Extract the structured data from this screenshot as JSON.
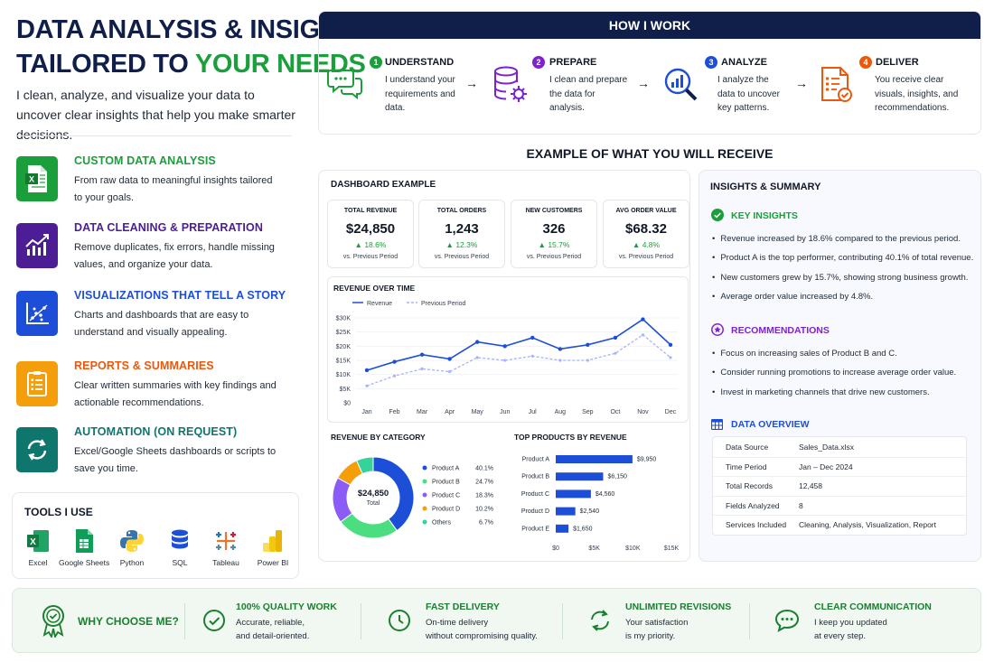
{
  "hero": {
    "line1": "DATA ANALYSIS & INSIGHTS",
    "line2_pre": "TAILORED TO ",
    "line2_accent": "YOUR NEEDS",
    "lead": "I clean, analyze, and visualize your data to uncover clear insights that help you make smarter decisions."
  },
  "services": [
    {
      "title": "CUSTOM DATA ANALYSIS",
      "desc": "From raw data to meaningful insights tailored to your goals.",
      "color": "#1a9f3b",
      "icon": "excel-file-icon"
    },
    {
      "title": "DATA CLEANING & PREPARATION",
      "desc": "Remove duplicates, fix errors, handle missing values, and organize your data.",
      "color": "#4c1d95",
      "icon": "chart-growth-icon"
    },
    {
      "title": "VISUALIZATIONS THAT TELL A STORY",
      "desc": "Charts and dashboards that are easy to understand and visually appealing.",
      "color": "#1d4ed8",
      "icon": "scatter-chart-icon"
    },
    {
      "title": "REPORTS & SUMMARIES",
      "desc": "Clear written summaries with key findings and actionable recommendations.",
      "color": "#ea580c",
      "icon": "report-icon"
    },
    {
      "title": "AUTOMATION (ON REQUEST)",
      "desc": "Excel/Google Sheets dashboards or scripts to save you time.",
      "color": "#0f766e",
      "icon": "refresh-icon"
    }
  ],
  "tools": {
    "title": "TOOLS I USE",
    "items": [
      "Excel",
      "Google Sheets",
      "Python",
      "SQL",
      "Tableau",
      "Power BI"
    ]
  },
  "how": {
    "title": "HOW I WORK",
    "steps": [
      {
        "num": "1",
        "title": "UNDERSTAND",
        "desc": "I understand your requirements and data.",
        "color": "#1a9f3b"
      },
      {
        "num": "2",
        "title": "PREPARE",
        "desc": "I clean and prepare the data for analysis.",
        "color": "#7e22ce"
      },
      {
        "num": "3",
        "title": "ANALYZE",
        "desc": "I analyze the data to uncover key patterns.",
        "color": "#1d4ed8"
      },
      {
        "num": "4",
        "title": "DELIVER",
        "desc": "You receive clear visuals, insights, and recommendations.",
        "color": "#ea580c"
      }
    ]
  },
  "example_title": "EXAMPLE OF WHAT YOU WILL RECEIVE",
  "dashboard": {
    "title": "DASHBOARD EXAMPLE",
    "kpis": [
      {
        "label": "TOTAL REVENUE",
        "value": "$24,850",
        "change": "▲ 18.6%",
        "note": "vs. Previous Period"
      },
      {
        "label": "TOTAL ORDERS",
        "value": "1,243",
        "change": "▲ 12.3%",
        "note": "vs. Previous Period"
      },
      {
        "label": "NEW CUSTOMERS",
        "value": "326",
        "change": "▲ 15.7%",
        "note": "vs. Previous Period"
      },
      {
        "label": "AVG ORDER VALUE",
        "value": "$68.32",
        "change": "▲ 4.8%",
        "note": "vs. Previous Period"
      }
    ],
    "revenue_title": "REVENUE OVER TIME",
    "category_title": "REVENUE BY CATEGORY",
    "products_title": "TOP PRODUCTS BY REVENUE",
    "donut_total": "$24,850",
    "donut_sub": "Total"
  },
  "chart_data": [
    {
      "type": "line",
      "title": "REVENUE OVER TIME",
      "x": [
        "Jan",
        "Feb",
        "Mar",
        "Apr",
        "May",
        "Jun",
        "Jul",
        "Aug",
        "Sep",
        "Oct",
        "Nov",
        "Dec"
      ],
      "yticks": [
        "$30K",
        "$25K",
        "$20K",
        "$15K",
        "$10K",
        "$5K",
        "$0"
      ],
      "ylim": [
        0,
        30000
      ],
      "series": [
        {
          "name": "Revenue",
          "values": [
            11500,
            14500,
            17000,
            15500,
            21500,
            20000,
            23000,
            19000,
            20500,
            23000,
            29500,
            20500
          ],
          "color": "#1d4ed8"
        },
        {
          "name": "Previous Period",
          "values": [
            6000,
            9500,
            12000,
            11000,
            16000,
            15000,
            16500,
            15000,
            15000,
            17500,
            24000,
            16000
          ],
          "color": "#a5b4fc"
        }
      ]
    },
    {
      "type": "pie",
      "title": "REVENUE BY CATEGORY",
      "categories": [
        "Product A",
        "Product B",
        "Product C",
        "Product D",
        "Others"
      ],
      "values": [
        40.1,
        24.7,
        18.3,
        10.2,
        6.7
      ],
      "labels": [
        "40.1%",
        "24.7%",
        "18.3%",
        "10.2%",
        "6.7%"
      ],
      "colors": [
        "#1d4ed8",
        "#4ade80",
        "#8b5cf6",
        "#f59e0b",
        "#34d399"
      ]
    },
    {
      "type": "bar",
      "title": "TOP PRODUCTS BY REVENUE",
      "categories": [
        "Product A",
        "Product B",
        "Product C",
        "Product D",
        "Product E"
      ],
      "values": [
        9950,
        6150,
        4560,
        2540,
        1650
      ],
      "labels": [
        "$9,950",
        "$6,150",
        "$4,560",
        "$2,540",
        "$1,650"
      ],
      "xticks": [
        "$0",
        "$5K",
        "$10K",
        "$15K"
      ],
      "xlim": [
        0,
        15000
      ],
      "color": "#1d4ed8"
    }
  ],
  "insights": {
    "title": "INSIGHTS & SUMMARY",
    "key_title": "KEY INSIGHTS",
    "key": [
      "Revenue increased by 18.6% compared to the previous period.",
      "Product A is the top performer, contributing 40.1% of total revenue.",
      "New customers grew by 15.7%, showing strong business growth.",
      "Average order value increased by 4.8%."
    ],
    "rec_title": "RECOMMENDATIONS",
    "rec": [
      "Focus on increasing sales of Product B and C.",
      "Consider running promotions to increase average order value.",
      "Invest in marketing channels that drive new customers."
    ],
    "ov_title": "DATA OVERVIEW",
    "ov": [
      [
        "Data Source",
        "Sales_Data.xlsx"
      ],
      [
        "Time Period",
        "Jan – Dec 2024"
      ],
      [
        "Total Records",
        "12,458"
      ],
      [
        "Fields Analyzed",
        "8"
      ],
      [
        "Services Included",
        "Cleaning, Analysis, Visualization, Report"
      ]
    ]
  },
  "why": {
    "title": "WHY CHOOSE ME?",
    "items": [
      {
        "title": "100% QUALITY WORK",
        "l1": "Accurate, reliable,",
        "l2": "and detail-oriented."
      },
      {
        "title": "FAST DELIVERY",
        "l1": "On-time delivery",
        "l2": "without compromising quality."
      },
      {
        "title": "UNLIMITED REVISIONS",
        "l1": "Your satisfaction",
        "l2": "is my priority."
      },
      {
        "title": "CLEAR COMMUNICATION",
        "l1": "I keep you updated",
        "l2": "at every step."
      }
    ]
  }
}
